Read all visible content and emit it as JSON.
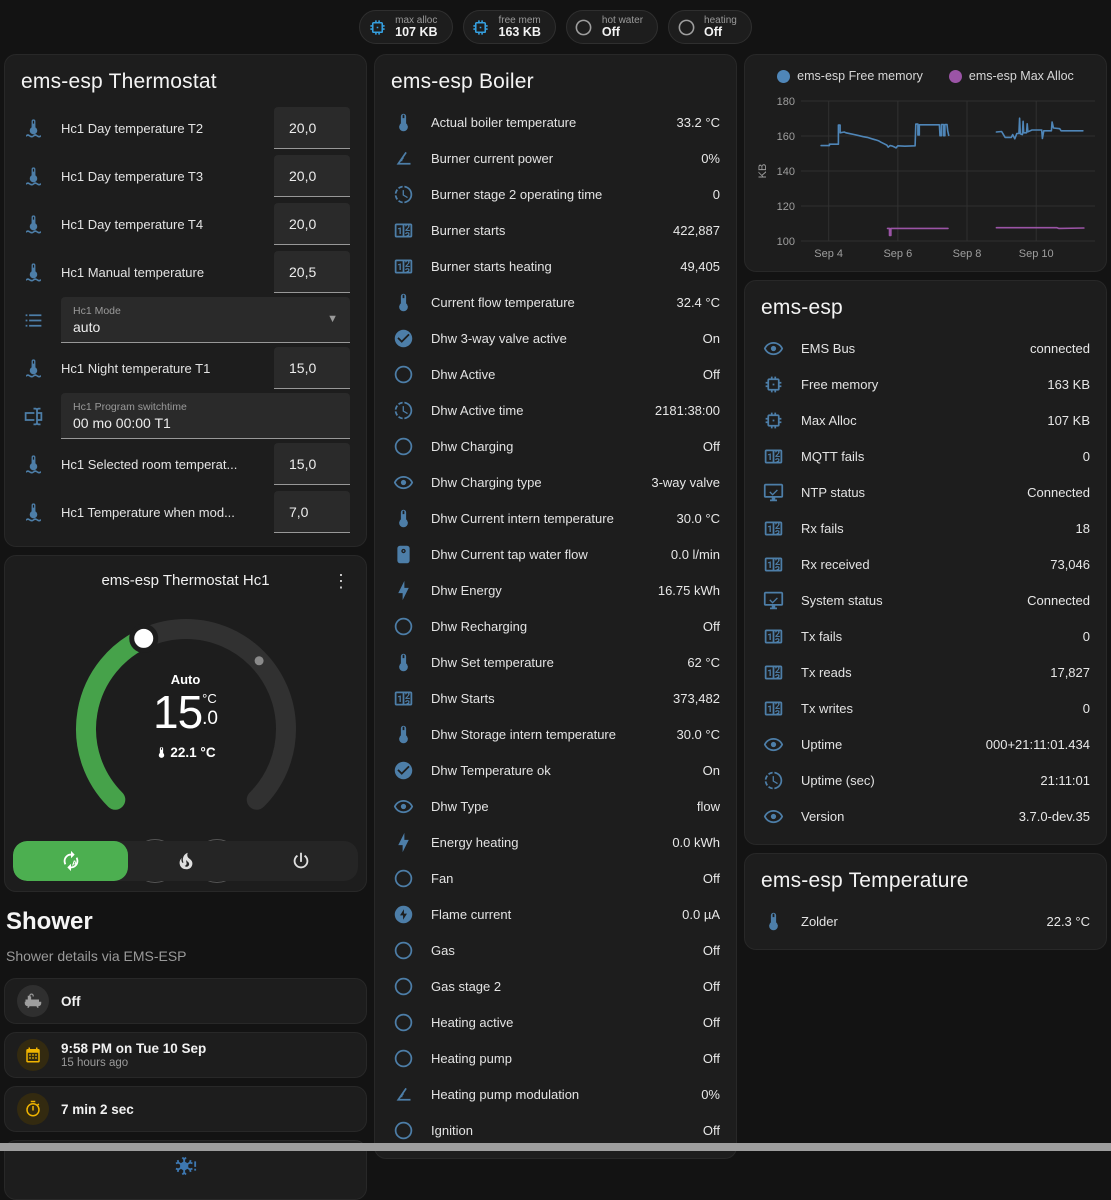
{
  "colors": {
    "accent_green": "#4caf50",
    "icon_blue": "#4d7ea8",
    "badge_blue": "#35a0e0",
    "amber": "#f0b400",
    "free_memory_line": "#4f86b8",
    "max_alloc_line": "#9b54a6"
  },
  "badges": [
    {
      "icon": "memory",
      "icon_color": "#35a0e0",
      "label": "max alloc",
      "value": "107 KB"
    },
    {
      "icon": "memory",
      "icon_color": "#35a0e0",
      "label": "free mem",
      "value": "163 KB"
    },
    {
      "icon": "circle-outline",
      "icon_color": "#9e9e9e",
      "label": "hot water",
      "value": "Off"
    },
    {
      "icon": "circle-outline",
      "icon_color": "#9e9e9e",
      "label": "heating",
      "value": "Off"
    }
  ],
  "thermostat_card": {
    "title": "ems-esp Thermostat",
    "rows": [
      {
        "type": "number",
        "icon": "thermometer-water",
        "label": "Hc1 Day temperature T2",
        "value": "20,0"
      },
      {
        "type": "number",
        "icon": "thermometer-water",
        "label": "Hc1 Day temperature T3",
        "value": "20,0"
      },
      {
        "type": "number",
        "icon": "thermometer-water",
        "label": "Hc1 Day temperature T4",
        "value": "20,0"
      },
      {
        "type": "number",
        "icon": "thermometer-water",
        "label": "Hc1 Manual temperature",
        "value": "20,5"
      },
      {
        "type": "select",
        "icon": "format-list",
        "label": "Hc1 Mode",
        "value": "auto"
      },
      {
        "type": "number",
        "icon": "thermometer-water",
        "label": "Hc1 Night temperature T1",
        "value": "15,0"
      },
      {
        "type": "text",
        "icon": "form-textbox",
        "label": "Hc1 Program switchtime",
        "value": "00 mo 00:00 T1"
      },
      {
        "type": "number",
        "icon": "thermometer-water",
        "label": "Hc1 Selected room temperat...",
        "value": "15,0"
      },
      {
        "type": "number",
        "icon": "thermometer-water",
        "label": "Hc1 Temperature when mod...",
        "value": "7,0"
      }
    ]
  },
  "dial_card": {
    "title": "ems-esp Thermostat Hc1",
    "mode": "Auto",
    "target_int": "15",
    "target_dec": ".0",
    "target_unit": "°C",
    "current_temp": "22.1 °C",
    "minus_label": "−",
    "plus_label": "+",
    "modes": [
      {
        "icon": "thermostat-auto",
        "name": "auto",
        "active": true
      },
      {
        "icon": "fire",
        "name": "heat",
        "active": false
      },
      {
        "icon": "power",
        "name": "off",
        "active": false
      }
    ]
  },
  "shower": {
    "title": "Shower",
    "subtitle": "Shower details via EMS-ESP",
    "items": [
      {
        "icon": "bathtub",
        "tint": "gray",
        "primary": "Off",
        "secondary": ""
      },
      {
        "icon": "calendar",
        "tint": "amber",
        "primary": "9:58 PM on Tue 10 Sep",
        "secondary": "15 hours ago"
      },
      {
        "icon": "timer",
        "tint": "amber",
        "primary": "7 min 2 sec",
        "secondary": ""
      }
    ],
    "alert_icon": "snowflake-alert"
  },
  "boiler_card": {
    "title": "ems-esp Boiler",
    "rows": [
      {
        "icon": "thermometer",
        "label": "Actual boiler temperature",
        "value": "33.2 °C"
      },
      {
        "icon": "angle-acute",
        "label": "Burner current power",
        "value": "0%"
      },
      {
        "icon": "progress-clock",
        "label": "Burner stage 2 operating time",
        "value": "0"
      },
      {
        "icon": "counter",
        "label": "Burner starts",
        "value": "422,887"
      },
      {
        "icon": "counter",
        "label": "Burner starts heating",
        "value": "49,405"
      },
      {
        "icon": "thermometer",
        "label": "Current flow temperature",
        "value": "32.4 °C"
      },
      {
        "icon": "check-circle",
        "label": "Dhw 3-way valve active",
        "value": "On"
      },
      {
        "icon": "circle-outline",
        "label": "Dhw Active",
        "value": "Off"
      },
      {
        "icon": "progress-clock",
        "label": "Dhw Active time",
        "value": "2181:38:00"
      },
      {
        "icon": "circle-outline",
        "label": "Dhw Charging",
        "value": "Off"
      },
      {
        "icon": "eye",
        "label": "Dhw Charging type",
        "value": "3-way valve"
      },
      {
        "icon": "thermometer",
        "label": "Dhw Current intern temperature",
        "value": "30.0 °C"
      },
      {
        "icon": "water-boiler",
        "label": "Dhw Current tap water flow",
        "value": "0.0 l/min"
      },
      {
        "icon": "lightning-bolt",
        "label": "Dhw Energy",
        "value": "16.75 kWh"
      },
      {
        "icon": "circle-outline",
        "label": "Dhw Recharging",
        "value": "Off"
      },
      {
        "icon": "thermometer",
        "label": "Dhw Set temperature",
        "value": "62 °C"
      },
      {
        "icon": "counter",
        "label": "Dhw Starts",
        "value": "373,482"
      },
      {
        "icon": "thermometer",
        "label": "Dhw Storage intern temperature",
        "value": "30.0 °C"
      },
      {
        "icon": "check-circle",
        "label": "Dhw Temperature ok",
        "value": "On"
      },
      {
        "icon": "eye",
        "label": "Dhw Type",
        "value": "flow"
      },
      {
        "icon": "lightning-bolt",
        "label": "Energy heating",
        "value": "0.0 kWh"
      },
      {
        "icon": "circle-outline",
        "label": "Fan",
        "value": "Off"
      },
      {
        "icon": "flash-circle",
        "label": "Flame current",
        "value": "0.0 µA"
      },
      {
        "icon": "circle-outline",
        "label": "Gas",
        "value": "Off"
      },
      {
        "icon": "circle-outline",
        "label": "Gas stage 2",
        "value": "Off"
      },
      {
        "icon": "circle-outline",
        "label": "Heating active",
        "value": "Off"
      },
      {
        "icon": "circle-outline",
        "label": "Heating pump",
        "value": "Off"
      },
      {
        "icon": "angle-acute",
        "label": "Heating pump modulation",
        "value": "0%"
      },
      {
        "icon": "circle-outline",
        "label": "Ignition",
        "value": "Off"
      }
    ]
  },
  "device_card": {
    "title": "ems-esp",
    "rows": [
      {
        "icon": "eye",
        "label": "EMS Bus",
        "value": "connected"
      },
      {
        "icon": "memory",
        "label": "Free memory",
        "value": "163 KB"
      },
      {
        "icon": "memory",
        "label": "Max Alloc",
        "value": "107 KB"
      },
      {
        "icon": "counter",
        "label": "MQTT fails",
        "value": "0"
      },
      {
        "icon": "monitor-check",
        "label": "NTP status",
        "value": "Connected"
      },
      {
        "icon": "counter",
        "label": "Rx fails",
        "value": "18"
      },
      {
        "icon": "counter",
        "label": "Rx received",
        "value": "73,046"
      },
      {
        "icon": "monitor-check",
        "label": "System status",
        "value": "Connected"
      },
      {
        "icon": "counter",
        "label": "Tx fails",
        "value": "0"
      },
      {
        "icon": "counter",
        "label": "Tx reads",
        "value": "17,827"
      },
      {
        "icon": "counter",
        "label": "Tx writes",
        "value": "0"
      },
      {
        "icon": "eye",
        "label": "Uptime",
        "value": "000+21:11:01.434"
      },
      {
        "icon": "progress-clock",
        "label": "Uptime (sec)",
        "value": "21:11:01"
      },
      {
        "icon": "eye",
        "label": "Version",
        "value": "3.7.0-dev.35"
      }
    ]
  },
  "temperature_card": {
    "title": "ems-esp Temperature",
    "rows": [
      {
        "icon": "thermometer",
        "label": "Zolder",
        "value": "22.3 °C"
      }
    ]
  },
  "chart_data": {
    "type": "line",
    "title": "",
    "xlabel": "",
    "ylabel": "KB",
    "ylim": [
      95,
      185
    ],
    "yticks": [
      100,
      120,
      140,
      160,
      180
    ],
    "xlim": [
      3.2,
      11.7
    ],
    "xticks": [
      {
        "x": 4,
        "label": "Sep 4"
      },
      {
        "x": 6,
        "label": "Sep 6"
      },
      {
        "x": 8,
        "label": "Sep 8"
      },
      {
        "x": 10,
        "label": "Sep 10"
      }
    ],
    "grid": true,
    "legend_position": "top",
    "series": [
      {
        "name": "ems-esp Free memory",
        "color": "#4f86b8",
        "segments": [
          [
            [
              3.78,
              154.5
            ],
            [
              4.02,
              154.5
            ],
            [
              4.02,
              155.3
            ],
            [
              4.28,
              155.3
            ],
            [
              4.28,
              166.3
            ],
            [
              4.33,
              166.3
            ],
            [
              4.33,
              161.8
            ],
            [
              4.45,
              162.3
            ],
            [
              4.5,
              161.8
            ],
            [
              4.62,
              161.3
            ],
            [
              4.75,
              160.8
            ],
            [
              4.88,
              160.2
            ],
            [
              5.0,
              159.6
            ],
            [
              5.12,
              159.2
            ],
            [
              5.25,
              158.4
            ],
            [
              5.35,
              157.8
            ],
            [
              5.45,
              157.2
            ],
            [
              5.52,
              156.4
            ],
            [
              5.6,
              155.6
            ],
            [
              5.68,
              154.8
            ],
            [
              5.72,
              153.6
            ],
            [
              5.78,
              154.6
            ],
            [
              5.85,
              154.2
            ],
            [
              5.95,
              153.2
            ],
            [
              6.0,
              154.4
            ],
            [
              6.2,
              154.2
            ],
            [
              6.5,
              154.4
            ],
            [
              6.52,
              166.8
            ],
            [
              6.58,
              166.8
            ],
            [
              6.58,
              160.6
            ],
            [
              6.62,
              160.6
            ],
            [
              6.62,
              166.4
            ],
            [
              7.2,
              166.4
            ],
            [
              7.22,
              160.2
            ],
            [
              7.26,
              160.2
            ],
            [
              7.26,
              166.6
            ],
            [
              7.32,
              166.6
            ],
            [
              7.32,
              160.2
            ],
            [
              7.36,
              160.2
            ],
            [
              7.36,
              166.6
            ],
            [
              7.42,
              166.6
            ],
            [
              7.44,
              163.0
            ],
            [
              7.47,
              160.4
            ]
          ],
          [
            [
              8.85,
              162.3
            ],
            [
              9.0,
              162.6
            ],
            [
              9.05,
              161.0
            ],
            [
              9.1,
              159.2
            ],
            [
              9.28,
              159.2
            ],
            [
              9.32,
              160.8
            ],
            [
              9.38,
              158.4
            ],
            [
              9.44,
              161.4
            ],
            [
              9.5,
              161.4
            ],
            [
              9.52,
              170.2
            ],
            [
              9.54,
              161.2
            ],
            [
              9.6,
              160.8
            ],
            [
              9.62,
              168.4
            ],
            [
              9.64,
              161.8
            ],
            [
              9.72,
              161.8
            ],
            [
              9.74,
              167.0
            ],
            [
              9.76,
              162.4
            ],
            [
              9.88,
              163.4
            ],
            [
              10.16,
              163.4
            ],
            [
              10.18,
              158.6
            ],
            [
              10.22,
              163.0
            ],
            [
              10.44,
              163.0
            ],
            [
              10.46,
              168.0
            ],
            [
              10.5,
              164.6
            ],
            [
              10.68,
              164.2
            ],
            [
              10.72,
              163.0
            ],
            [
              11.35,
              163.0
            ]
          ]
        ]
      },
      {
        "name": "ems-esp Max Alloc",
        "color": "#9b54a6",
        "segments": [
          [
            [
              5.7,
              107.2
            ],
            [
              5.76,
              107.2
            ],
            [
              5.76,
              103.2
            ],
            [
              5.8,
              103.2
            ],
            [
              5.8,
              107.2
            ],
            [
              7.45,
              107.2
            ]
          ],
          [
            [
              8.85,
              107.6
            ],
            [
              10.6,
              107.6
            ],
            [
              10.65,
              107.2
            ],
            [
              11.38,
              107.4
            ]
          ]
        ]
      }
    ]
  }
}
